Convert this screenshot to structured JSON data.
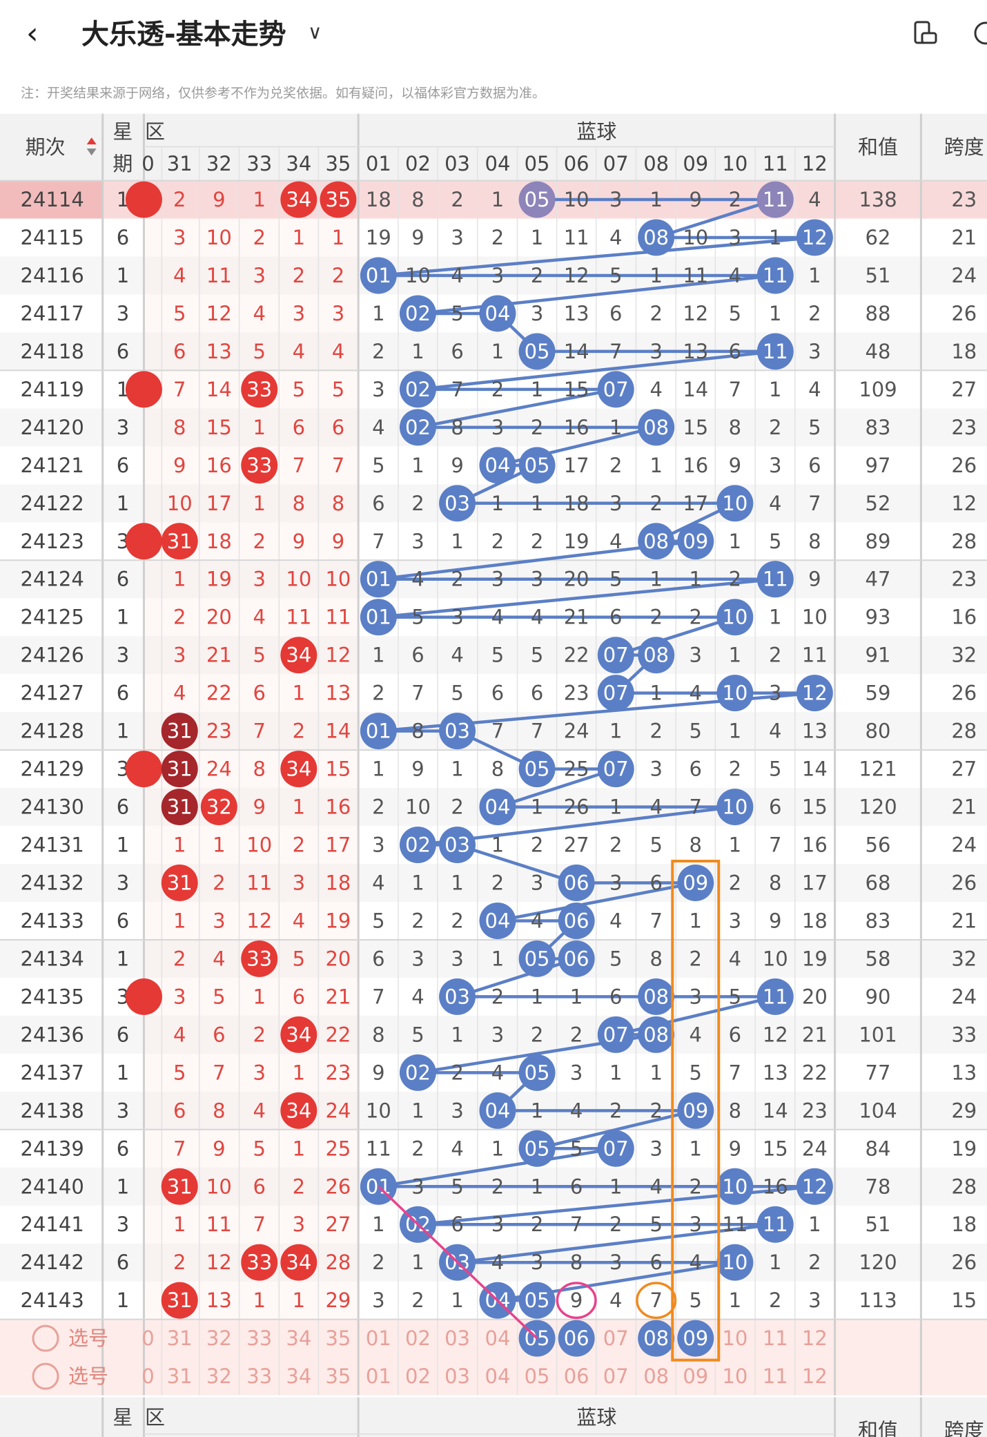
{
  "header": {
    "back_icon": "chevron-left-icon",
    "title": "大乐透-基本走势",
    "dropdown_icon": "chevron-down-icon",
    "rotate_icon": "screen-rotate-icon",
    "more_icon": "more-circle-icon"
  },
  "note": "注：开奖结果来源于网络，仅供参考不作为兑奖依据。如有疑问，以福体彩官方数据为准。",
  "colors": {
    "red": "#e53935",
    "red_text": "#e0463f",
    "dark_red": "#a5262b",
    "blue": "#5b7fc6",
    "purple": "#8d84b9",
    "orange": "#f08a1e",
    "pink": "#e8428c",
    "highlight_row": "#f9dada",
    "select_bg": "#fdece9"
  },
  "table_header": {
    "period": "期次",
    "week": "星期",
    "red_zone": "区",
    "blue_zone": "蓝球",
    "sum": "和值",
    "span": "跨度",
    "red_cols": [
      "31",
      "32",
      "33",
      "34",
      "35"
    ],
    "blue_cols": [
      "01",
      "02",
      "03",
      "04",
      "05",
      "06",
      "07",
      "08",
      "09",
      "10",
      "11",
      "12"
    ]
  },
  "rows": [
    {
      "period": "24114",
      "week": "1",
      "red": [
        "2",
        "9",
        "1",
        "34",
        "35"
      ],
      "red_marks": [
        false,
        false,
        false,
        true,
        true
      ],
      "cut": "0",
      "blue": [
        "18",
        "8",
        "2",
        "1",
        "05",
        "10",
        "3",
        "1",
        "9",
        "2",
        "11",
        "4"
      ],
      "sum": "138",
      "span": "23"
    },
    {
      "period": "24115",
      "week": "6",
      "red": [
        "3",
        "10",
        "2",
        "1",
        "1"
      ],
      "red_marks": [
        false,
        false,
        false,
        false,
        false
      ],
      "cut": "",
      "blue": [
        "19",
        "9",
        "3",
        "2",
        "1",
        "11",
        "4",
        "08",
        "10",
        "3",
        "1",
        "12"
      ],
      "sum": "62",
      "span": "21"
    },
    {
      "period": "24116",
      "week": "1",
      "red": [
        "4",
        "11",
        "3",
        "2",
        "2"
      ],
      "red_marks": [
        false,
        false,
        false,
        false,
        false
      ],
      "cut": "",
      "blue": [
        "01",
        "10",
        "4",
        "3",
        "2",
        "12",
        "5",
        "1",
        "11",
        "4",
        "11",
        "1"
      ],
      "sum": "51",
      "span": "24"
    },
    {
      "period": "24117",
      "week": "3",
      "red": [
        "5",
        "12",
        "4",
        "3",
        "3"
      ],
      "red_marks": [
        false,
        false,
        false,
        false,
        false
      ],
      "cut": "",
      "blue": [
        "1",
        "02",
        "5",
        "04",
        "3",
        "13",
        "6",
        "2",
        "12",
        "5",
        "1",
        "2"
      ],
      "sum": "88",
      "span": "26"
    },
    {
      "period": "24118",
      "week": "6",
      "red": [
        "6",
        "13",
        "5",
        "4",
        "4"
      ],
      "red_marks": [
        false,
        false,
        false,
        false,
        false
      ],
      "cut": "",
      "blue": [
        "2",
        "1",
        "6",
        "1",
        "05",
        "14",
        "7",
        "3",
        "13",
        "6",
        "11",
        "3"
      ],
      "sum": "48",
      "span": "18"
    },
    {
      "period": "24119",
      "week": "1",
      "red": [
        "7",
        "14",
        "33",
        "5",
        "5"
      ],
      "red_marks": [
        false,
        false,
        true,
        false,
        false
      ],
      "cut": "0",
      "blue": [
        "3",
        "02",
        "7",
        "2",
        "1",
        "15",
        "07",
        "4",
        "14",
        "7",
        "1",
        "4"
      ],
      "sum": "109",
      "span": "27"
    },
    {
      "period": "24120",
      "week": "3",
      "red": [
        "8",
        "15",
        "1",
        "6",
        "6"
      ],
      "red_marks": [
        false,
        false,
        false,
        false,
        false
      ],
      "cut": "",
      "blue": [
        "4",
        "02",
        "8",
        "3",
        "2",
        "16",
        "1",
        "08",
        "15",
        "8",
        "2",
        "5"
      ],
      "sum": "83",
      "span": "23"
    },
    {
      "period": "24121",
      "week": "6",
      "red": [
        "9",
        "16",
        "33",
        "7",
        "7"
      ],
      "red_marks": [
        false,
        false,
        true,
        false,
        false
      ],
      "cut": "",
      "blue": [
        "5",
        "1",
        "9",
        "04",
        "05",
        "17",
        "2",
        "1",
        "16",
        "9",
        "3",
        "6"
      ],
      "sum": "97",
      "span": "26"
    },
    {
      "period": "24122",
      "week": "1",
      "red": [
        "10",
        "17",
        "1",
        "8",
        "8"
      ],
      "red_marks": [
        false,
        false,
        false,
        false,
        false
      ],
      "cut": "",
      "blue": [
        "6",
        "2",
        "03",
        "1",
        "1",
        "18",
        "3",
        "2",
        "17",
        "10",
        "4",
        "7"
      ],
      "sum": "52",
      "span": "12"
    },
    {
      "period": "24123",
      "week": "3",
      "red": [
        "31",
        "18",
        "2",
        "9",
        "9"
      ],
      "red_marks": [
        true,
        false,
        false,
        false,
        false
      ],
      "cut": "0",
      "blue": [
        "7",
        "3",
        "1",
        "2",
        "2",
        "19",
        "4",
        "08",
        "09",
        "1",
        "5",
        "8"
      ],
      "sum": "89",
      "span": "28"
    },
    {
      "period": "24124",
      "week": "6",
      "red": [
        "1",
        "19",
        "3",
        "10",
        "10"
      ],
      "red_marks": [
        false,
        false,
        false,
        false,
        false
      ],
      "cut": "",
      "blue": [
        "01",
        "4",
        "2",
        "3",
        "3",
        "20",
        "5",
        "1",
        "1",
        "2",
        "11",
        "9"
      ],
      "sum": "47",
      "span": "23"
    },
    {
      "period": "24125",
      "week": "1",
      "red": [
        "2",
        "20",
        "4",
        "11",
        "11"
      ],
      "red_marks": [
        false,
        false,
        false,
        false,
        false
      ],
      "cut": "",
      "blue": [
        "01",
        "5",
        "3",
        "4",
        "4",
        "21",
        "6",
        "2",
        "2",
        "10",
        "1",
        "10"
      ],
      "sum": "93",
      "span": "16"
    },
    {
      "period": "24126",
      "week": "3",
      "red": [
        "3",
        "21",
        "5",
        "34",
        "12"
      ],
      "red_marks": [
        false,
        false,
        false,
        true,
        false
      ],
      "cut": "",
      "blue": [
        "1",
        "6",
        "4",
        "5",
        "5",
        "22",
        "07",
        "08",
        "3",
        "1",
        "2",
        "11"
      ],
      "sum": "91",
      "span": "32"
    },
    {
      "period": "24127",
      "week": "6",
      "red": [
        "4",
        "22",
        "6",
        "1",
        "13"
      ],
      "red_marks": [
        false,
        false,
        false,
        false,
        false
      ],
      "cut": "",
      "blue": [
        "2",
        "7",
        "5",
        "6",
        "6",
        "23",
        "07",
        "1",
        "4",
        "10",
        "3",
        "12"
      ],
      "sum": "59",
      "span": "26"
    },
    {
      "period": "24128",
      "week": "1",
      "red": [
        "31",
        "23",
        "7",
        "2",
        "14"
      ],
      "red_marks": [
        true,
        false,
        false,
        false,
        false
      ],
      "cut": "",
      "blue": [
        "01",
        "8",
        "03",
        "7",
        "7",
        "24",
        "1",
        "2",
        "5",
        "1",
        "4",
        "13"
      ],
      "sum": "80",
      "span": "28"
    },
    {
      "period": "24129",
      "week": "3",
      "red": [
        "31",
        "24",
        "8",
        "34",
        "15"
      ],
      "red_marks": [
        true,
        false,
        false,
        true,
        false
      ],
      "cut": "0",
      "blue": [
        "1",
        "9",
        "1",
        "8",
        "05",
        "25",
        "07",
        "3",
        "6",
        "2",
        "5",
        "14"
      ],
      "sum": "121",
      "span": "27"
    },
    {
      "period": "24130",
      "week": "6",
      "red": [
        "31",
        "32",
        "9",
        "1",
        "16"
      ],
      "red_marks": [
        true,
        true,
        false,
        false,
        false
      ],
      "cut": "",
      "blue": [
        "2",
        "10",
        "2",
        "04",
        "1",
        "26",
        "1",
        "4",
        "7",
        "10",
        "6",
        "15"
      ],
      "sum": "120",
      "span": "21"
    },
    {
      "period": "24131",
      "week": "1",
      "red": [
        "1",
        "1",
        "10",
        "2",
        "17"
      ],
      "red_marks": [
        false,
        false,
        false,
        false,
        false
      ],
      "cut": "",
      "blue": [
        "3",
        "02",
        "03",
        "1",
        "2",
        "27",
        "2",
        "5",
        "8",
        "1",
        "7",
        "16"
      ],
      "sum": "56",
      "span": "24"
    },
    {
      "period": "24132",
      "week": "3",
      "red": [
        "31",
        "2",
        "11",
        "3",
        "18"
      ],
      "red_marks": [
        true,
        false,
        false,
        false,
        false
      ],
      "cut": "",
      "blue": [
        "4",
        "1",
        "1",
        "2",
        "3",
        "06",
        "3",
        "6",
        "09",
        "2",
        "8",
        "17"
      ],
      "sum": "68",
      "span": "26"
    },
    {
      "period": "24133",
      "week": "6",
      "red": [
        "1",
        "3",
        "12",
        "4",
        "19"
      ],
      "red_marks": [
        false,
        false,
        false,
        false,
        false
      ],
      "cut": "",
      "blue": [
        "5",
        "2",
        "2",
        "04",
        "4",
        "06",
        "4",
        "7",
        "1",
        "3",
        "9",
        "18"
      ],
      "sum": "83",
      "span": "21"
    },
    {
      "period": "24134",
      "week": "1",
      "red": [
        "2",
        "4",
        "33",
        "5",
        "20"
      ],
      "red_marks": [
        false,
        false,
        true,
        false,
        false
      ],
      "cut": "",
      "blue": [
        "6",
        "3",
        "3",
        "1",
        "05",
        "06",
        "5",
        "8",
        "2",
        "4",
        "10",
        "19"
      ],
      "sum": "58",
      "span": "32"
    },
    {
      "period": "24135",
      "week": "3",
      "red": [
        "3",
        "5",
        "1",
        "6",
        "21"
      ],
      "red_marks": [
        false,
        false,
        false,
        false,
        false
      ],
      "cut": "0",
      "blue": [
        "7",
        "4",
        "03",
        "2",
        "1",
        "1",
        "6",
        "08",
        "3",
        "5",
        "11",
        "20"
      ],
      "sum": "90",
      "span": "24"
    },
    {
      "period": "24136",
      "week": "6",
      "red": [
        "4",
        "6",
        "2",
        "34",
        "22"
      ],
      "red_marks": [
        false,
        false,
        false,
        true,
        false
      ],
      "cut": "",
      "blue": [
        "8",
        "5",
        "1",
        "3",
        "2",
        "2",
        "07",
        "08",
        "4",
        "6",
        "12",
        "21"
      ],
      "sum": "101",
      "span": "33"
    },
    {
      "period": "24137",
      "week": "1",
      "red": [
        "5",
        "7",
        "3",
        "1",
        "23"
      ],
      "red_marks": [
        false,
        false,
        false,
        false,
        false
      ],
      "cut": "",
      "blue": [
        "9",
        "02",
        "2",
        "4",
        "05",
        "3",
        "1",
        "1",
        "5",
        "7",
        "13",
        "22"
      ],
      "sum": "77",
      "span": "13"
    },
    {
      "period": "24138",
      "week": "3",
      "red": [
        "6",
        "8",
        "4",
        "34",
        "24"
      ],
      "red_marks": [
        false,
        false,
        false,
        true,
        false
      ],
      "cut": "",
      "blue": [
        "10",
        "1",
        "3",
        "04",
        "1",
        "4",
        "2",
        "2",
        "09",
        "8",
        "14",
        "23"
      ],
      "sum": "104",
      "span": "29"
    },
    {
      "period": "24139",
      "week": "6",
      "red": [
        "7",
        "9",
        "5",
        "1",
        "25"
      ],
      "red_marks": [
        false,
        false,
        false,
        false,
        false
      ],
      "cut": "",
      "blue": [
        "11",
        "2",
        "4",
        "1",
        "05",
        "5",
        "07",
        "3",
        "1",
        "9",
        "15",
        "24"
      ],
      "sum": "84",
      "span": "19"
    },
    {
      "period": "24140",
      "week": "1",
      "red": [
        "31",
        "10",
        "6",
        "2",
        "26"
      ],
      "red_marks": [
        true,
        false,
        false,
        false,
        false
      ],
      "cut": "",
      "blue": [
        "01",
        "3",
        "5",
        "2",
        "1",
        "6",
        "1",
        "4",
        "2",
        "10",
        "16",
        "12"
      ],
      "sum": "78",
      "span": "28"
    },
    {
      "period": "24141",
      "week": "3",
      "red": [
        "1",
        "11",
        "7",
        "3",
        "27"
      ],
      "red_marks": [
        false,
        false,
        false,
        false,
        false
      ],
      "cut": "",
      "blue": [
        "1",
        "02",
        "6",
        "3",
        "2",
        "7",
        "2",
        "5",
        "3",
        "11",
        "11",
        "1"
      ],
      "sum": "51",
      "span": "18"
    },
    {
      "period": "24142",
      "week": "6",
      "red": [
        "2",
        "12",
        "33",
        "34",
        "28"
      ],
      "red_marks": [
        false,
        false,
        true,
        true,
        false
      ],
      "cut": "",
      "blue": [
        "2",
        "1",
        "03",
        "4",
        "3",
        "8",
        "3",
        "6",
        "4",
        "10",
        "1",
        "2"
      ],
      "sum": "120",
      "span": "26"
    },
    {
      "period": "24143",
      "week": "1",
      "red": [
        "31",
        "13",
        "1",
        "1",
        "29"
      ],
      "red_marks": [
        true,
        false,
        false,
        false,
        false
      ],
      "cut": "",
      "blue": [
        "3",
        "2",
        "1",
        "04",
        "05",
        "9",
        "4",
        "7",
        "5",
        "1",
        "2",
        "3"
      ],
      "sum": "113",
      "span": "15"
    }
  ],
  "select_rows": [
    {
      "label": "选号",
      "icon": "radio-circle-icon",
      "cut": "0",
      "red": [
        "31",
        "32",
        "33",
        "34",
        "35"
      ],
      "blue": [
        "01",
        "02",
        "03",
        "04",
        "05",
        "06",
        "07",
        "08",
        "09",
        "10",
        "11",
        "12"
      ],
      "selected_blue": [
        false,
        false,
        false,
        false,
        true,
        true,
        false,
        true,
        true,
        false,
        false,
        false
      ]
    },
    {
      "label": "选号",
      "icon": "radio-circle-icon",
      "cut": "0",
      "red": [
        "31",
        "32",
        "33",
        "34",
        "35"
      ],
      "blue": [
        "01",
        "02",
        "03",
        "04",
        "05",
        "06",
        "07",
        "08",
        "09",
        "10",
        "11",
        "12"
      ],
      "selected_blue": [
        false,
        false,
        false,
        false,
        false,
        false,
        false,
        false,
        false,
        false,
        false,
        false
      ]
    }
  ],
  "footer_header": {
    "dash": "-",
    "week": "星",
    "week2": "期",
    "red_zone": "区",
    "blue_zone": "蓝球",
    "sum": "和值",
    "span": "跨度"
  },
  "annotations": {
    "circled_9": "9",
    "circled_7": "7",
    "pink_line": "24140-01 to 选号-05",
    "orange_box_column": "09"
  }
}
